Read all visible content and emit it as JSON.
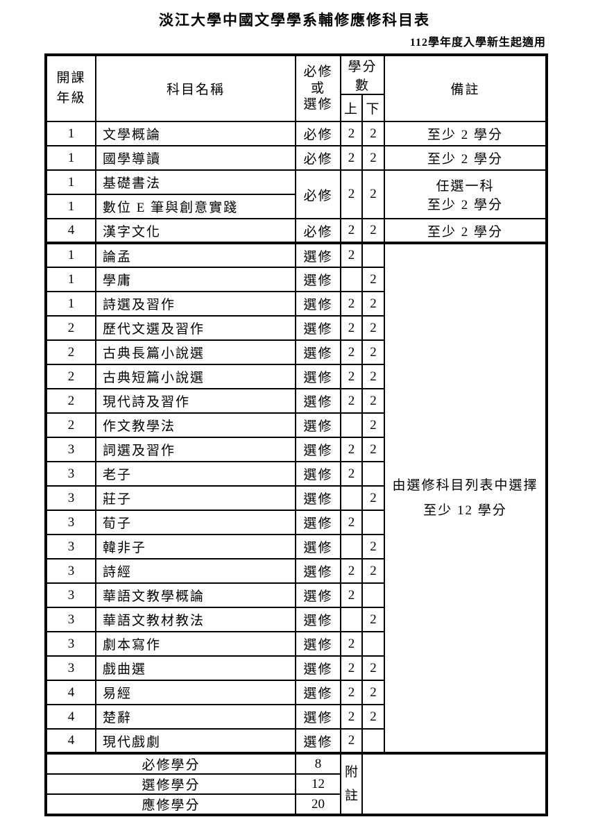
{
  "page": {
    "title": "淡江大學中國文學學系輔修應修科目表",
    "subtitle": "112學年度入學新生起適用"
  },
  "table": {
    "headers": {
      "grade": "開課\n年級",
      "course": "科目名稱",
      "type": "必修\n或\n選修",
      "credits": "學分數",
      "sem_first": "上",
      "sem_second": "下",
      "remark": "備註"
    },
    "sections": [
      {
        "name": "required",
        "rows": [
          {
            "grade": "1",
            "course": "文學概論",
            "type": "必修",
            "up": "2",
            "down": "2",
            "remark": "至少 2 學分"
          },
          {
            "grade": "1",
            "course": "國學導讀",
            "type": "必修",
            "up": "2",
            "down": "2",
            "remark": "至少 2 學分"
          },
          {
            "grade": "1",
            "course": "基礎書法",
            "group": {
              "span": 2,
              "type": "必修",
              "up": "2",
              "down": "2",
              "remark": "任選一科\n至少 2 學分"
            }
          },
          {
            "grade": "1",
            "course": "數位 E 筆與創意實踐",
            "in_group": true
          },
          {
            "grade": "4",
            "course": "漢字文化",
            "type": "必修",
            "up": "2",
            "down": "2",
            "remark": "至少 2 學分"
          }
        ]
      },
      {
        "name": "elective",
        "remark": "由選修科目列表中選擇\n至少 12 學分",
        "rows": [
          {
            "grade": "1",
            "course": "論孟",
            "type": "選修",
            "up": "2",
            "down": ""
          },
          {
            "grade": "1",
            "course": "學庸",
            "type": "選修",
            "up": "",
            "down": "2"
          },
          {
            "grade": "1",
            "course": "詩選及習作",
            "type": "選修",
            "up": "2",
            "down": "2"
          },
          {
            "grade": "2",
            "course": "歷代文選及習作",
            "type": "選修",
            "up": "2",
            "down": "2"
          },
          {
            "grade": "2",
            "course": "古典長篇小說選",
            "type": "選修",
            "up": "2",
            "down": "2"
          },
          {
            "grade": "2",
            "course": "古典短篇小說選",
            "type": "選修",
            "up": "2",
            "down": "2"
          },
          {
            "grade": "2",
            "course": "現代詩及習作",
            "type": "選修",
            "up": "2",
            "down": "2"
          },
          {
            "grade": "2",
            "course": "作文教學法",
            "type": "選修",
            "up": "",
            "down": "2"
          },
          {
            "grade": "3",
            "course": "詞選及習作",
            "type": "選修",
            "up": "2",
            "down": "2"
          },
          {
            "grade": "3",
            "course": "老子",
            "type": "選修",
            "up": "2",
            "down": ""
          },
          {
            "grade": "3",
            "course": "莊子",
            "type": "選修",
            "up": "",
            "down": "2"
          },
          {
            "grade": "3",
            "course": "荀子",
            "type": "選修",
            "up": "2",
            "down": ""
          },
          {
            "grade": "3",
            "course": "韓非子",
            "type": "選修",
            "up": "",
            "down": "2"
          },
          {
            "grade": "3",
            "course": "詩經",
            "type": "選修",
            "up": "2",
            "down": "2"
          },
          {
            "grade": "3",
            "course": "華語文教學概論",
            "type": "選修",
            "up": "2",
            "down": ""
          },
          {
            "grade": "3",
            "course": "華語文教材教法",
            "type": "選修",
            "up": "",
            "down": "2"
          },
          {
            "grade": "3",
            "course": "劇本寫作",
            "type": "選修",
            "up": "2",
            "down": ""
          },
          {
            "grade": "3",
            "course": "戲曲選",
            "type": "選修",
            "up": "2",
            "down": "2"
          },
          {
            "grade": "4",
            "course": "易經",
            "type": "選修",
            "up": "2",
            "down": "2"
          },
          {
            "grade": "4",
            "course": "楚辭",
            "type": "選修",
            "up": "2",
            "down": "2"
          },
          {
            "grade": "4",
            "course": "現代戲劇",
            "type": "選修",
            "up": "2",
            "down": ""
          }
        ]
      }
    ],
    "footer": {
      "side_label": "附\n註",
      "rows": [
        {
          "label": "必修學分",
          "value": "8"
        },
        {
          "label": "選修學分",
          "value": "12"
        },
        {
          "label": "應修學分",
          "value": "20"
        }
      ]
    }
  }
}
